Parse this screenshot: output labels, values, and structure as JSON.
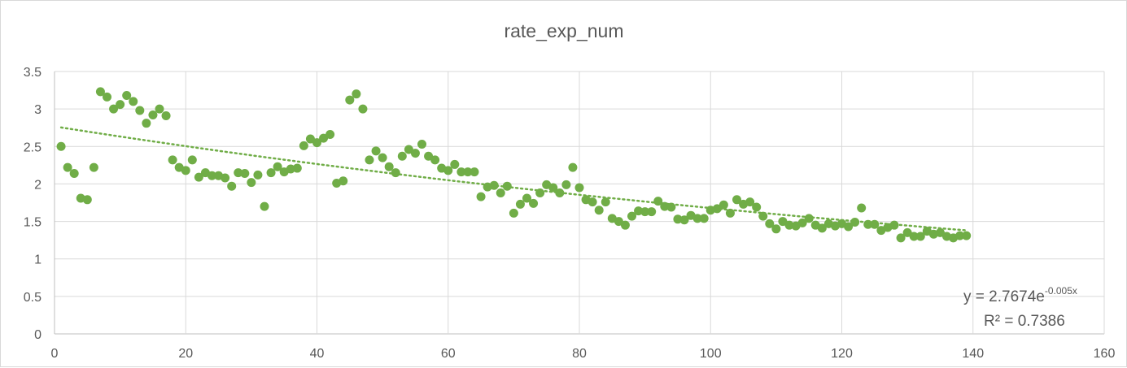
{
  "chart_data": {
    "type": "scatter",
    "title": "rate_exp_num",
    "xlim": [
      0,
      160
    ],
    "ylim": [
      0,
      3.5
    ],
    "x_ticks": [
      "0",
      "20",
      "40",
      "60",
      "80",
      "100",
      "120",
      "140",
      "160"
    ],
    "y_ticks": [
      "0",
      "0.5",
      "1",
      "1.5",
      "2",
      "2.5",
      "3",
      "3.5"
    ],
    "grid": true,
    "marker_color": "#70ad47",
    "trendline_color": "#70ad47",
    "trendline": {
      "type": "exponential",
      "a": 2.7674,
      "b": -0.005,
      "equation_prefix": "y = 2.7674e",
      "equation_exponent": "-0.005x",
      "r_squared_text": "R² = 0.7386"
    },
    "series": [
      {
        "x": [
          1,
          2,
          3,
          4,
          5,
          6,
          7,
          8,
          9,
          10,
          11,
          12,
          13,
          14,
          15,
          16,
          17,
          18,
          19,
          20,
          21,
          22,
          23,
          24,
          25,
          26,
          27,
          28,
          29,
          30,
          31,
          32,
          33,
          34,
          35,
          36,
          37,
          38,
          39,
          40,
          41,
          42,
          43,
          44,
          45,
          46,
          47,
          48,
          49,
          50,
          51,
          52,
          53,
          54,
          55,
          56,
          57,
          58,
          59,
          60,
          61,
          62,
          63,
          64,
          65,
          66,
          67,
          68,
          69,
          70,
          71,
          72,
          73,
          74,
          75,
          76,
          77,
          78,
          79,
          80,
          81,
          82,
          83,
          84,
          85,
          86,
          87,
          88,
          89,
          90,
          91,
          92,
          93,
          94,
          95,
          96,
          97,
          98,
          99,
          100,
          101,
          102,
          103,
          104,
          105,
          106,
          107,
          108,
          109,
          110,
          111,
          112,
          113,
          114,
          115,
          116,
          117,
          118,
          119,
          120,
          121,
          122,
          123,
          124,
          125,
          126,
          127,
          128,
          129,
          130,
          131,
          132,
          133,
          134,
          135,
          136,
          137,
          138,
          139
        ],
        "y": [
          2.5,
          2.22,
          2.14,
          1.81,
          1.79,
          2.22,
          3.23,
          3.16,
          3.0,
          3.06,
          3.18,
          3.1,
          2.98,
          2.81,
          2.92,
          3.0,
          2.91,
          2.32,
          2.22,
          2.18,
          2.32,
          2.09,
          2.15,
          2.11,
          2.11,
          2.08,
          1.97,
          2.15,
          2.14,
          2.02,
          2.12,
          1.7,
          2.15,
          2.23,
          2.16,
          2.2,
          2.21,
          2.51,
          2.6,
          2.55,
          2.61,
          2.66,
          2.01,
          2.04,
          3.12,
          3.2,
          3.0,
          2.32,
          2.44,
          2.35,
          2.23,
          2.15,
          2.37,
          2.46,
          2.41,
          2.53,
          2.37,
          2.32,
          2.21,
          2.18,
          2.26,
          2.16,
          2.16,
          2.16,
          1.83,
          1.96,
          1.98,
          1.88,
          1.97,
          1.61,
          1.73,
          1.81,
          1.74,
          1.88,
          1.99,
          1.95,
          1.88,
          1.99,
          2.22,
          1.95,
          1.79,
          1.76,
          1.65,
          1.76,
          1.54,
          1.5,
          1.45,
          1.57,
          1.64,
          1.63,
          1.63,
          1.77,
          1.7,
          1.69,
          1.53,
          1.52,
          1.58,
          1.54,
          1.54,
          1.65,
          1.67,
          1.72,
          1.61,
          1.79,
          1.73,
          1.76,
          1.69,
          1.57,
          1.47,
          1.4,
          1.5,
          1.45,
          1.44,
          1.48,
          1.54,
          1.45,
          1.41,
          1.47,
          1.44,
          1.47,
          1.43,
          1.49,
          1.68,
          1.46,
          1.46,
          1.38,
          1.42,
          1.45,
          1.28,
          1.35,
          1.3,
          1.3,
          1.37,
          1.33,
          1.35,
          1.3,
          1.28,
          1.31,
          1.31
        ]
      }
    ]
  }
}
